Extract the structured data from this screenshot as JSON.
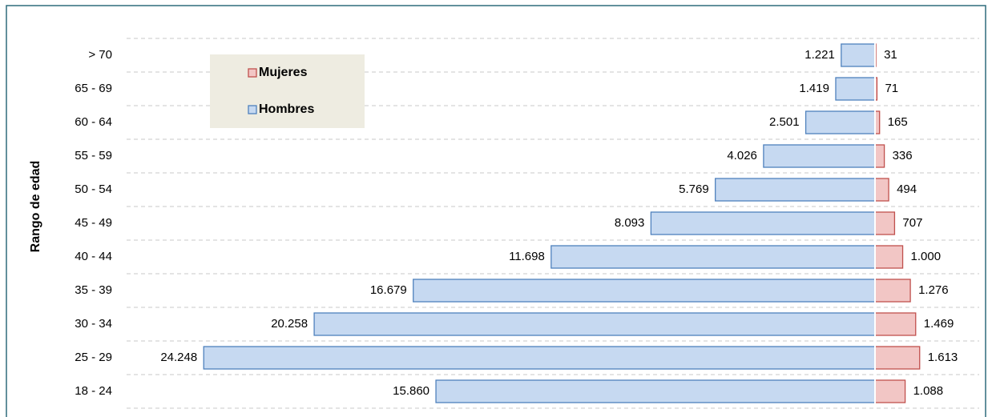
{
  "chart_data": {
    "type": "pyramid",
    "y_label": "Rango de edad",
    "categories": [
      "> 70",
      "65 - 69",
      "60 - 64",
      "55 - 59",
      "50 - 54",
      "45 - 49",
      "40 - 44",
      "35 - 39",
      "30 - 34",
      "25 - 29",
      "18 - 24"
    ],
    "series": [
      {
        "name": "Mujeres",
        "side": "right",
        "color": "#f2c6c5",
        "edgecolor": "#c0504d",
        "values": [
          31,
          71,
          165,
          336,
          494,
          707,
          1000,
          1276,
          1469,
          1613,
          1088
        ],
        "value_labels": [
          "31",
          "71",
          "165",
          "336",
          "494",
          "707",
          "1.000",
          "1.276",
          "1.469",
          "1.613",
          "1.088"
        ]
      },
      {
        "name": "Hombres",
        "side": "left",
        "color": "#c6d9f1",
        "edgecolor": "#4f81bd",
        "values": [
          1221,
          1419,
          2501,
          4026,
          5769,
          8093,
          11698,
          16679,
          20258,
          24248,
          15860
        ],
        "value_labels": [
          "1.221",
          "1.419",
          "2.501",
          "4.026",
          "5.769",
          "8.093",
          "11.698",
          "16.679",
          "20.258",
          "24.248",
          "15.860"
        ]
      }
    ],
    "grid": true
  }
}
